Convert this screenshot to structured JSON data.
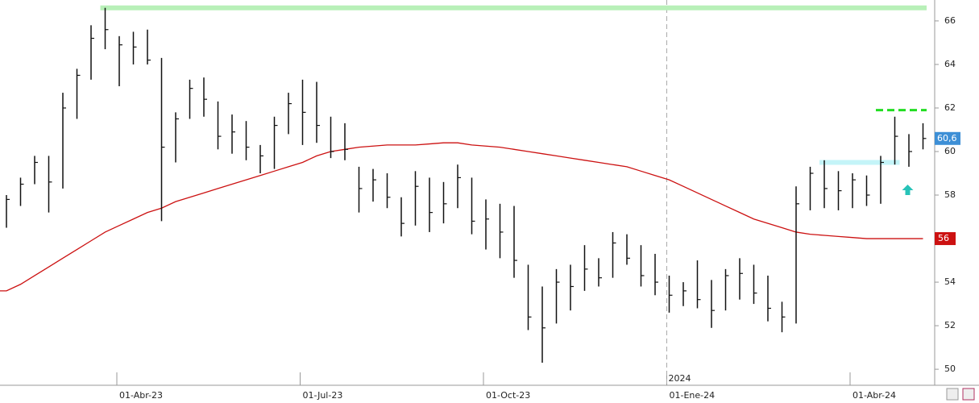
{
  "chart_data": {
    "type": "ohlc",
    "categories": [
      null,
      null,
      null,
      null,
      null,
      null,
      null,
      null,
      "01-Abr-23",
      null,
      null,
      null,
      null,
      null,
      null,
      null,
      null,
      null,
      null,
      null,
      null,
      "01-Jul-23",
      null,
      null,
      null,
      null,
      null,
      null,
      null,
      null,
      null,
      null,
      null,
      null,
      "01-Oct-23",
      null,
      null,
      null,
      null,
      null,
      null,
      null,
      null,
      null,
      null,
      null,
      null,
      "01-Ene-24",
      null,
      null,
      null,
      null,
      null,
      null,
      null,
      null,
      null,
      null,
      null,
      null,
      "01-Abr-24",
      null,
      null,
      null,
      null,
      null
    ],
    "high": [
      58,
      58.8,
      59.8,
      59.8,
      62.7,
      63.8,
      65.8,
      66.6,
      65.3,
      65.5,
      65.6,
      64.3,
      61.8,
      63.3,
      63.4,
      62.3,
      61.7,
      61.4,
      60.3,
      61.6,
      62.7,
      63.3,
      63.2,
      61.6,
      61.3,
      59.3,
      59.2,
      59.0,
      57.9,
      59.1,
      58.8,
      58.6,
      59.4,
      58.8,
      57.8,
      57.6,
      57.5,
      54.8,
      53.8,
      54.6,
      54.8,
      55.7,
      55.1,
      56.3,
      56.2,
      55.7,
      55.3,
      54.3,
      54.0,
      55.0,
      54.1,
      54.6,
      55.1,
      54.8,
      54.3,
      53.1,
      58.4,
      59.3,
      59.6,
      59.1,
      59.0,
      58.9,
      59.8,
      61.6,
      60.8,
      61.3
    ],
    "low": [
      56.5,
      57.5,
      58.5,
      57.2,
      58.3,
      61.5,
      63.3,
      64.7,
      63,
      64,
      64,
      56.8,
      59.5,
      61.5,
      61.6,
      60.1,
      59.9,
      59.6,
      59.0,
      59.2,
      60.8,
      60.3,
      60.4,
      59.7,
      59.6,
      57.2,
      57.7,
      57.4,
      56.1,
      56.6,
      56.3,
      56.7,
      57.4,
      56.2,
      55.5,
      55.1,
      54.2,
      51.8,
      50.3,
      52.1,
      52.7,
      53.6,
      53.8,
      54.2,
      54.8,
      53.8,
      53.4,
      52.6,
      52.9,
      52.8,
      51.9,
      52.7,
      53.2,
      53.0,
      52.2,
      51.7,
      52.1,
      57.3,
      57.4,
      57.3,
      57.4,
      57.5,
      57.6,
      59.4,
      59.3,
      60.1
    ],
    "close": [
      57.8,
      58.5,
      59.5,
      58.6,
      62,
      63.5,
      65.2,
      65.6,
      64.9,
      64.8,
      64.2,
      60.2,
      61.5,
      62.9,
      62.4,
      60.7,
      60.9,
      60.2,
      59.8,
      61.2,
      62.2,
      61.8,
      61.2,
      60.0,
      60.1,
      58.3,
      58.7,
      57.9,
      56.7,
      58.4,
      57.2,
      57.6,
      58.8,
      56.8,
      56.9,
      56.3,
      55.0,
      52.4,
      51.9,
      54.0,
      53.8,
      54.6,
      54.2,
      55.8,
      55.1,
      54.3,
      54.0,
      53.4,
      53.6,
      53.2,
      52.7,
      54.3,
      54.4,
      53.5,
      52.8,
      52.4,
      57.6,
      59.0,
      58.3,
      58.2,
      58.7,
      58.0,
      59.5,
      60.7,
      60.0,
      60.6
    ],
    "bar_color": "#111111",
    "moving_average": {
      "color": "#cc1111",
      "values": [
        53.6,
        53.9,
        54.3,
        54.7,
        55.1,
        55.5,
        55.9,
        56.3,
        56.6,
        56.9,
        57.2,
        57.4,
        57.7,
        57.9,
        58.1,
        58.3,
        58.5,
        58.7,
        58.9,
        59.1,
        59.3,
        59.5,
        59.8,
        60.0,
        60.1,
        60.2,
        60.25,
        60.3,
        60.3,
        60.3,
        60.35,
        60.4,
        60.4,
        60.3,
        60.25,
        60.2,
        60.1,
        60.0,
        59.9,
        59.8,
        59.7,
        59.6,
        59.5,
        59.4,
        59.3,
        59.1,
        58.9,
        58.7,
        58.4,
        58.1,
        57.8,
        57.5,
        57.2,
        56.9,
        56.7,
        56.5,
        56.3,
        56.2,
        56.15,
        56.1,
        56.05,
        56.0,
        56.0,
        56.0,
        56.0,
        56.0
      ],
      "last_label": 56
    },
    "levels": [
      {
        "value": 66.6,
        "color": "#b8f0b8"
      },
      {
        "value": 61.9,
        "color": "#22dd22"
      },
      {
        "value": 59.5,
        "color": "#c4f4f8"
      }
    ],
    "last_price": {
      "value": 60.6,
      "label": "60,6",
      "color": "#3d8fd6"
    },
    "annotation": "2024",
    "ylim": [
      49.56,
      66.96
    ],
    "yticks": [
      50,
      52,
      54,
      56,
      58,
      60,
      62,
      64,
      66
    ]
  }
}
